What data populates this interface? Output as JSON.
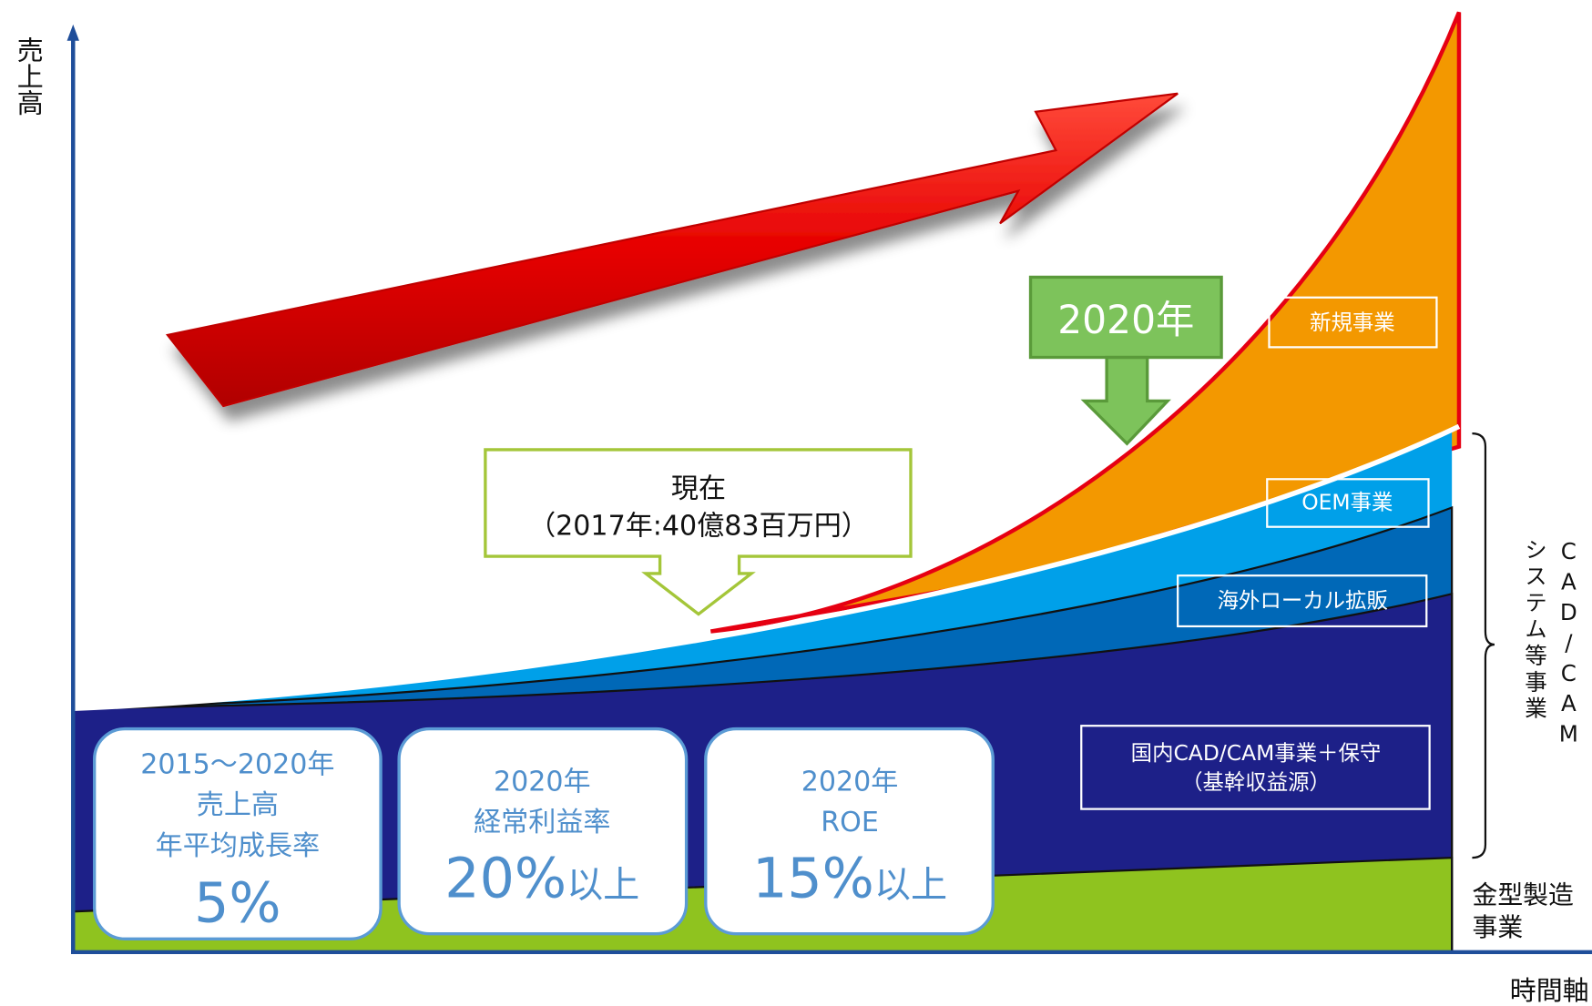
{
  "axes": {
    "y_label": "売上高",
    "x_label": "時間軸"
  },
  "target_year": "2020年",
  "current": {
    "title": "現在",
    "detail": "（2017年:40億83百万円）"
  },
  "segments": [
    {
      "label": "新規事業"
    },
    {
      "label": "OEM事業"
    },
    {
      "label": "海外ローカル拡販"
    },
    {
      "label": "国内CAD/CAM事業＋保守",
      "sublabel": "（基幹収益源）"
    }
  ],
  "bracket_label": [
    "CAD/CAM",
    "システム等事業"
  ],
  "bottom_segment": [
    "金型製造",
    "事業"
  ],
  "targets": [
    {
      "lines": [
        "2015～2020年",
        "売上高",
        "年平均成長率"
      ],
      "value": "5%"
    },
    {
      "lines": [
        "2020年",
        "経常利益率"
      ],
      "value": "20%",
      "suffix": "以上"
    },
    {
      "lines": [
        "2020年",
        "ROE"
      ],
      "value": "15%",
      "suffix": "以上"
    }
  ]
}
